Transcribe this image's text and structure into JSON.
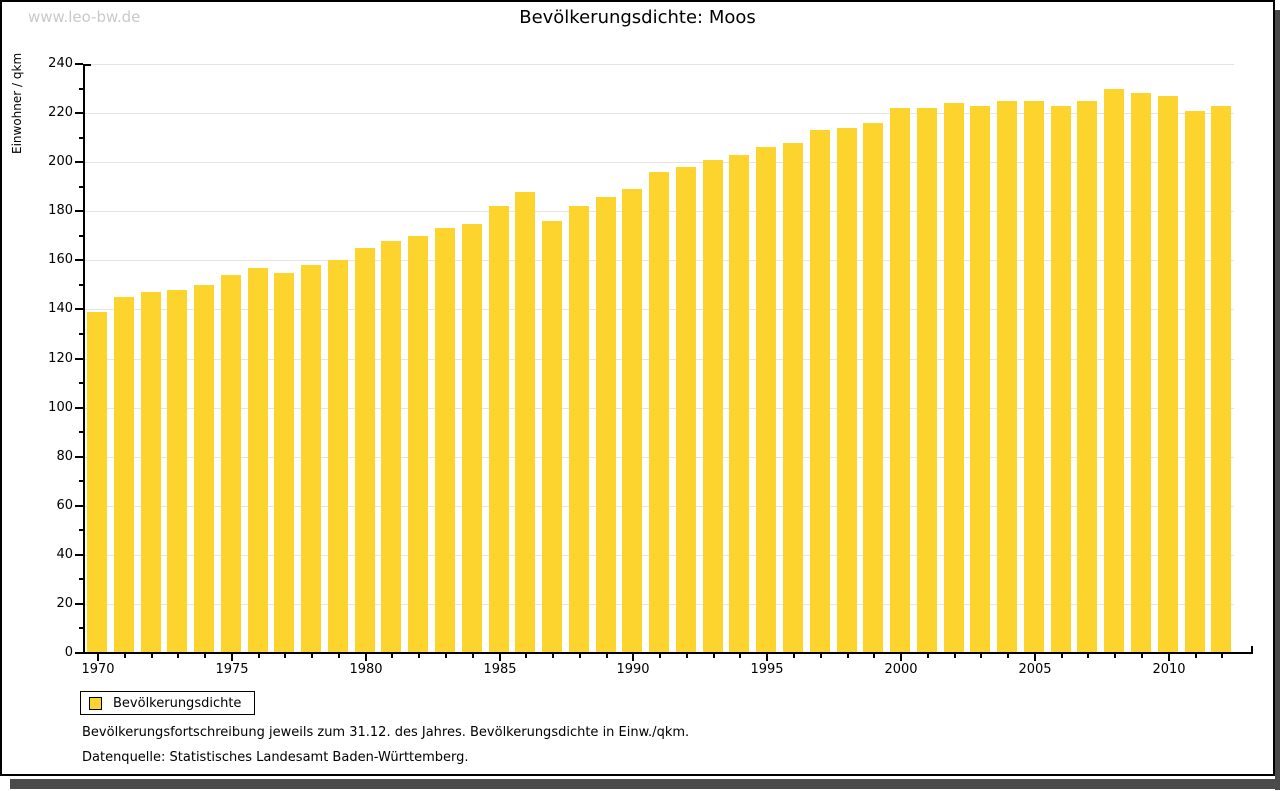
{
  "page": {
    "watermark": "www.leo-bw.de",
    "title": "Bevölkerungsdichte: Moos"
  },
  "chart_data": {
    "type": "bar",
    "title": "Bevölkerungsdichte: Moos",
    "series_name": "Bevölkerungsdichte",
    "xlabel": "",
    "ylabel": "Einwohner / qkm",
    "ylim": [
      0,
      240
    ],
    "y_tick_step": 20,
    "y_minor_tick_step": 10,
    "grid": true,
    "legend_position": "bottom-left",
    "bar_color": "#fcd42d",
    "categories": [
      1970,
      1971,
      1972,
      1973,
      1974,
      1975,
      1976,
      1977,
      1978,
      1979,
      1980,
      1981,
      1982,
      1983,
      1984,
      1985,
      1986,
      1987,
      1988,
      1989,
      1990,
      1991,
      1992,
      1993,
      1994,
      1995,
      1996,
      1997,
      1998,
      1999,
      2000,
      2001,
      2002,
      2003,
      2004,
      2005,
      2006,
      2007,
      2008,
      2009,
      2010,
      2011,
      2012
    ],
    "values": [
      139,
      145,
      147,
      148,
      150,
      154,
      157,
      155,
      158,
      160,
      165,
      168,
      170,
      173,
      175,
      182,
      188,
      176,
      182,
      186,
      189,
      196,
      198,
      201,
      203,
      206,
      208,
      213,
      214,
      216,
      222,
      222,
      224,
      223,
      225,
      225,
      223,
      225,
      230,
      228,
      227,
      221,
      223
    ],
    "x_labeled_ticks": [
      1970,
      1975,
      1980,
      1985,
      1990,
      1995,
      2000,
      2005,
      2010
    ]
  },
  "legend": {
    "label": "Bevölkerungsdichte"
  },
  "footnotes": {
    "line1": "Bevölkerungsfortschreibung jeweils zum 31.12. des Jahres. Bevölkerungsdichte in Einw./qkm.",
    "line2": "Datenquelle: Statistisches Landesamt Baden-Württemberg."
  }
}
